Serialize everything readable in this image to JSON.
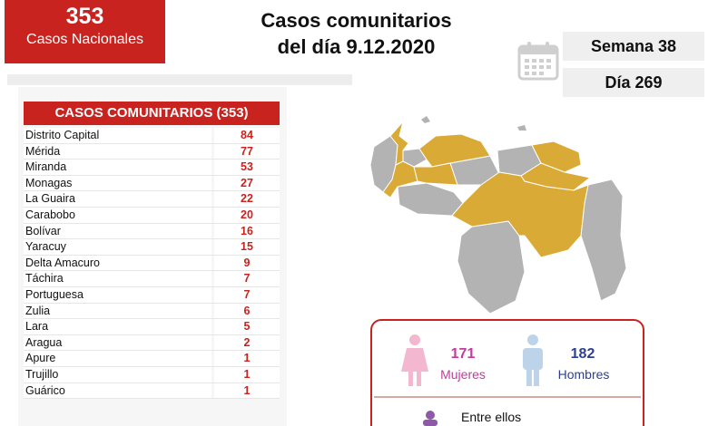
{
  "header": {
    "total_number": "353",
    "total_label": "Casos Nacionales",
    "title_line1": "Casos comunitarios",
    "title_line2": "del día 9.12.2020",
    "week_label": "Semana 38",
    "day_label": "Día 269"
  },
  "table": {
    "header": "CASOS COMUNITARIOS (353)",
    "rows": [
      {
        "name": "Distrito Capital",
        "value": "84"
      },
      {
        "name": "Mérida",
        "value": "77"
      },
      {
        "name": "Miranda",
        "value": "53"
      },
      {
        "name": "Monagas",
        "value": "27"
      },
      {
        "name": "La Guaira",
        "value": "22"
      },
      {
        "name": "Carabobo",
        "value": "20"
      },
      {
        "name": "Bolívar",
        "value": "16"
      },
      {
        "name": "Yaracuy",
        "value": "15"
      },
      {
        "name": "Delta Amacuro",
        "value": "9"
      },
      {
        "name": "Táchira",
        "value": "7"
      },
      {
        "name": "Portuguesa",
        "value": "7"
      },
      {
        "name": "Zulia",
        "value": "6"
      },
      {
        "name": "Lara",
        "value": "5"
      },
      {
        "name": "Aragua",
        "value": "2"
      },
      {
        "name": "Apure",
        "value": "1"
      },
      {
        "name": "Trujillo",
        "value": "1"
      },
      {
        "name": "Guárico",
        "value": "1"
      }
    ]
  },
  "gender": {
    "female_count": "171",
    "female_label": "Mujeres",
    "male_count": "182",
    "male_label": "Hombres",
    "footer_text": "Entre ellos"
  },
  "colors": {
    "accent_red": "#c8231f",
    "map_highlight": "#d9aa35",
    "map_gray": "#b3b3b3",
    "female": "#c13c9c",
    "male": "#2e3f8f"
  },
  "icons": {
    "calendar": "calendar-icon",
    "female": "female-person-icon",
    "male": "male-person-icon",
    "group": "group-icon"
  }
}
